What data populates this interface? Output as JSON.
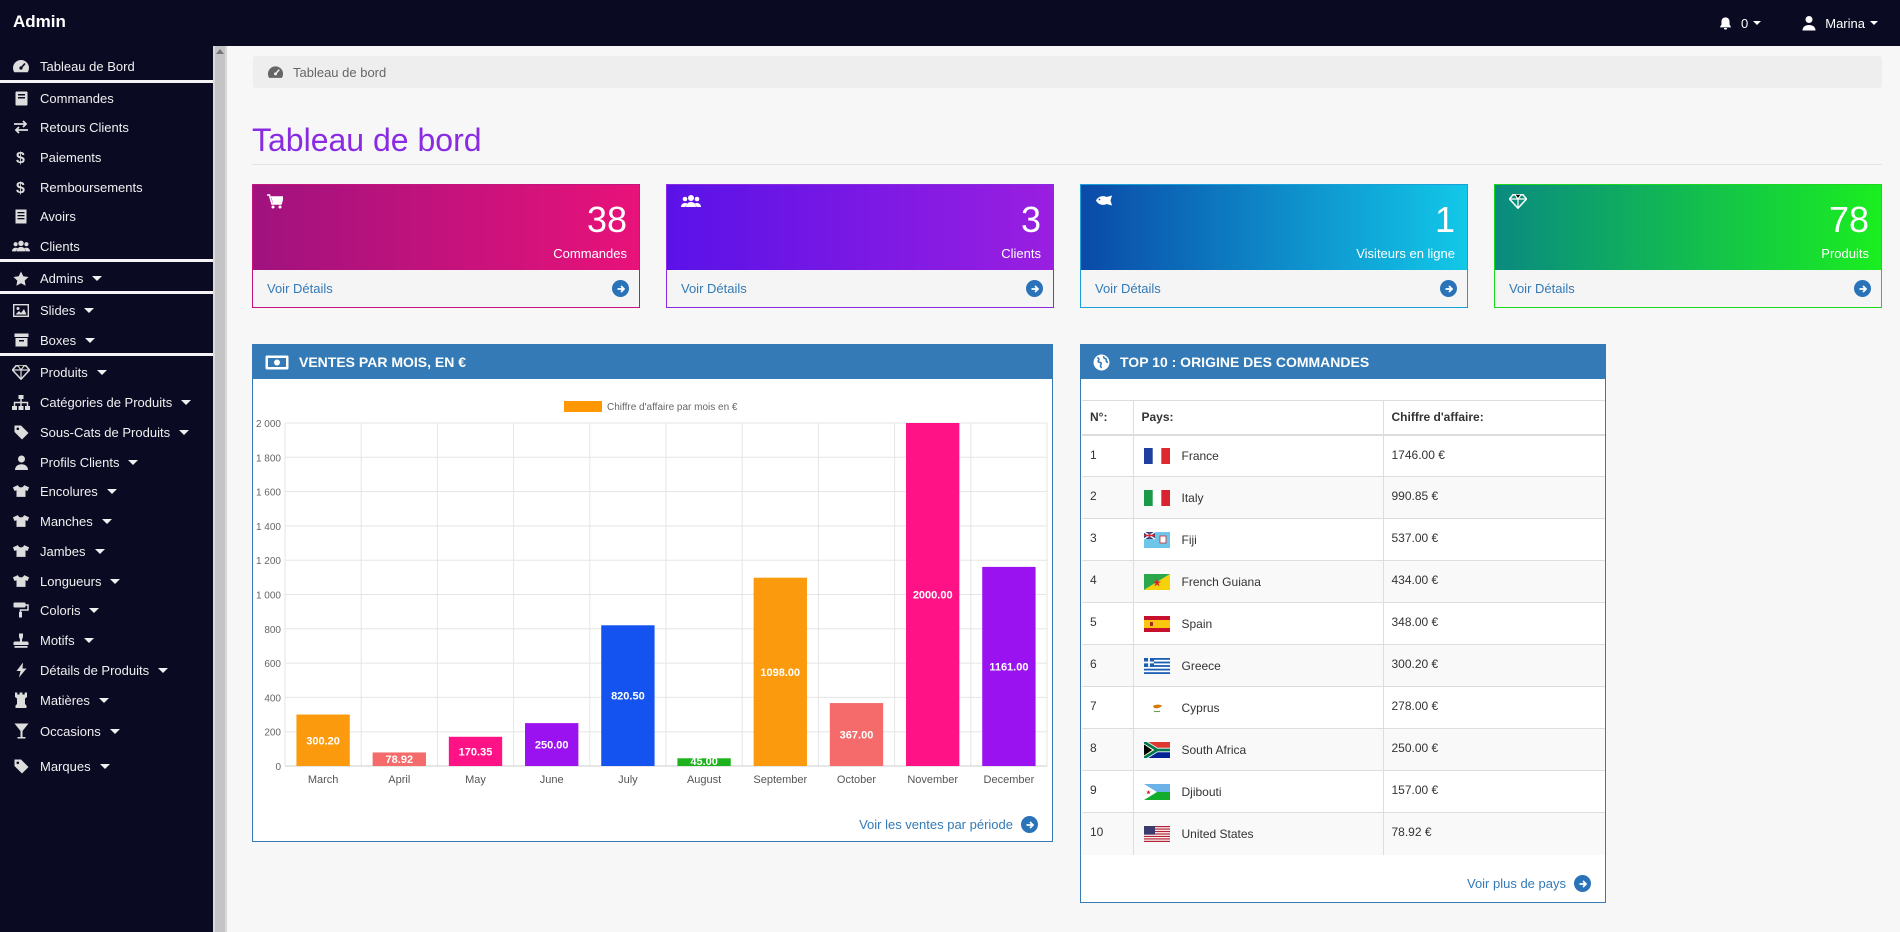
{
  "topbar": {
    "brand": "Admin",
    "notifications_count": "0",
    "user_name": "Marina"
  },
  "sidebar": {
    "items": [
      {
        "label": "Tableau de Bord",
        "icon": "dashboard-icon"
      },
      {
        "label": "Commandes",
        "icon": "book-icon"
      },
      {
        "label": "Retours Clients",
        "icon": "exchange-icon"
      },
      {
        "label": "Paiements",
        "icon": "dollar-icon"
      },
      {
        "label": "Remboursements",
        "icon": "dollar-icon"
      },
      {
        "label": "Avoirs",
        "icon": "list-icon"
      },
      {
        "label": "Clients",
        "icon": "users-icon"
      },
      {
        "label": "Admins",
        "icon": "star-icon"
      },
      {
        "label": "Slides",
        "icon": "image-icon"
      },
      {
        "label": "Boxes",
        "icon": "archive-icon"
      },
      {
        "label": "Produits",
        "icon": "diamond-icon"
      },
      {
        "label": "Catégories de Produits",
        "icon": "sitemap-icon"
      },
      {
        "label": "Sous-Cats de Produits",
        "icon": "tag-icon"
      },
      {
        "label": "Profils Clients",
        "icon": "user-icon"
      },
      {
        "label": "Encolures",
        "icon": "tshirt-icon"
      },
      {
        "label": "Manches",
        "icon": "tshirt-icon"
      },
      {
        "label": "Jambes",
        "icon": "tshirt-icon"
      },
      {
        "label": "Longueurs",
        "icon": "tshirt-icon"
      },
      {
        "label": "Coloris",
        "icon": "paint-roller-icon"
      },
      {
        "label": "Motifs",
        "icon": "stamp-icon"
      },
      {
        "label": "Détails de Produits",
        "icon": "bolt-icon"
      },
      {
        "label": "Matières",
        "icon": "chess-rook-icon"
      },
      {
        "label": "Occasions",
        "icon": "glass-icon"
      },
      {
        "label": "Marques",
        "icon": "tag-icon"
      }
    ]
  },
  "breadcrumb": {
    "label": "Tableau de bord"
  },
  "page_title": "Tableau de bord",
  "cards": [
    {
      "value": "38",
      "label": "Commandes",
      "link": "Voir Détails",
      "icon": "cart-icon",
      "colors": [
        "#a0127e",
        "#e8127a"
      ],
      "border": "#c4157f"
    },
    {
      "value": "3",
      "label": "Clients",
      "link": "Voir Détails",
      "icon": "users-icon",
      "colors": [
        "#5a12e8",
        "#9a1fe0"
      ],
      "border": "#8a2be2"
    },
    {
      "value": "1",
      "label": "Visiteurs en ligne",
      "link": "Voir Détails",
      "icon": "fish-icon",
      "colors": [
        "#0a4aa8",
        "#12c8e8"
      ],
      "border": "#1aa0d8"
    },
    {
      "value": "78",
      "label": "Produits",
      "link": "Voir Détails",
      "icon": "diamond-icon",
      "colors": [
        "#0a8a80",
        "#1aee20"
      ],
      "border": "#1ad820"
    }
  ],
  "sales_panel": {
    "title": "VENTES PAR MOIS, EN €",
    "footer_link": "Voir les ventes par période"
  },
  "chart_data": {
    "type": "bar",
    "legend": "Chiffre d'affaire par mois en €",
    "legend_color": "#ff9800",
    "categories": [
      "March",
      "April",
      "May",
      "June",
      "July",
      "August",
      "September",
      "October",
      "November",
      "December"
    ],
    "values": [
      300.2,
      78.92,
      170.35,
      250.0,
      820.5,
      45.0,
      1098.0,
      367.0,
      2000.0,
      1161.0
    ],
    "labels": [
      "300.20",
      "78.92",
      "170.35",
      "250.00",
      "820.50",
      "45.00",
      "1098.00",
      "367.00",
      "2000.00",
      "1161.00"
    ],
    "colors": [
      "#fb9a0d",
      "#f56a6a",
      "#ff1286",
      "#9a12f0",
      "#1453f0",
      "#1fb21f",
      "#fb9a0d",
      "#f56a6a",
      "#ff1286",
      "#9a12f0"
    ],
    "yticks": [
      "2 000",
      "1 800",
      "1 600",
      "1 400",
      "1 200",
      "1 000",
      "800",
      "600",
      "400",
      "200",
      "0"
    ],
    "ylim": [
      0,
      2000
    ],
    "grid": true
  },
  "top10_panel": {
    "title": "TOP 10 : ORIGINE DES COMMANDES",
    "headers": [
      "N°:",
      "Pays:",
      "Chiffre d'affaire:"
    ],
    "rows": [
      {
        "n": "1",
        "country": "France",
        "amount": "1746.00 €",
        "flag": "france"
      },
      {
        "n": "2",
        "country": "Italy",
        "amount": "990.85 €",
        "flag": "italy"
      },
      {
        "n": "3",
        "country": "Fiji",
        "amount": "537.00 €",
        "flag": "fiji"
      },
      {
        "n": "4",
        "country": "French Guiana",
        "amount": "434.00 €",
        "flag": "french-guiana"
      },
      {
        "n": "5",
        "country": "Spain",
        "amount": "348.00 €",
        "flag": "spain"
      },
      {
        "n": "6",
        "country": "Greece",
        "amount": "300.20 €",
        "flag": "greece"
      },
      {
        "n": "7",
        "country": "Cyprus",
        "amount": "278.00 €",
        "flag": "cyprus"
      },
      {
        "n": "8",
        "country": "South Africa",
        "amount": "250.00 €",
        "flag": "south-africa"
      },
      {
        "n": "9",
        "country": "Djibouti",
        "amount": "157.00 €",
        "flag": "djibouti"
      },
      {
        "n": "10",
        "country": "United States",
        "amount": "78.92 €",
        "flag": "united-states"
      }
    ],
    "footer_link": "Voir plus de pays"
  }
}
